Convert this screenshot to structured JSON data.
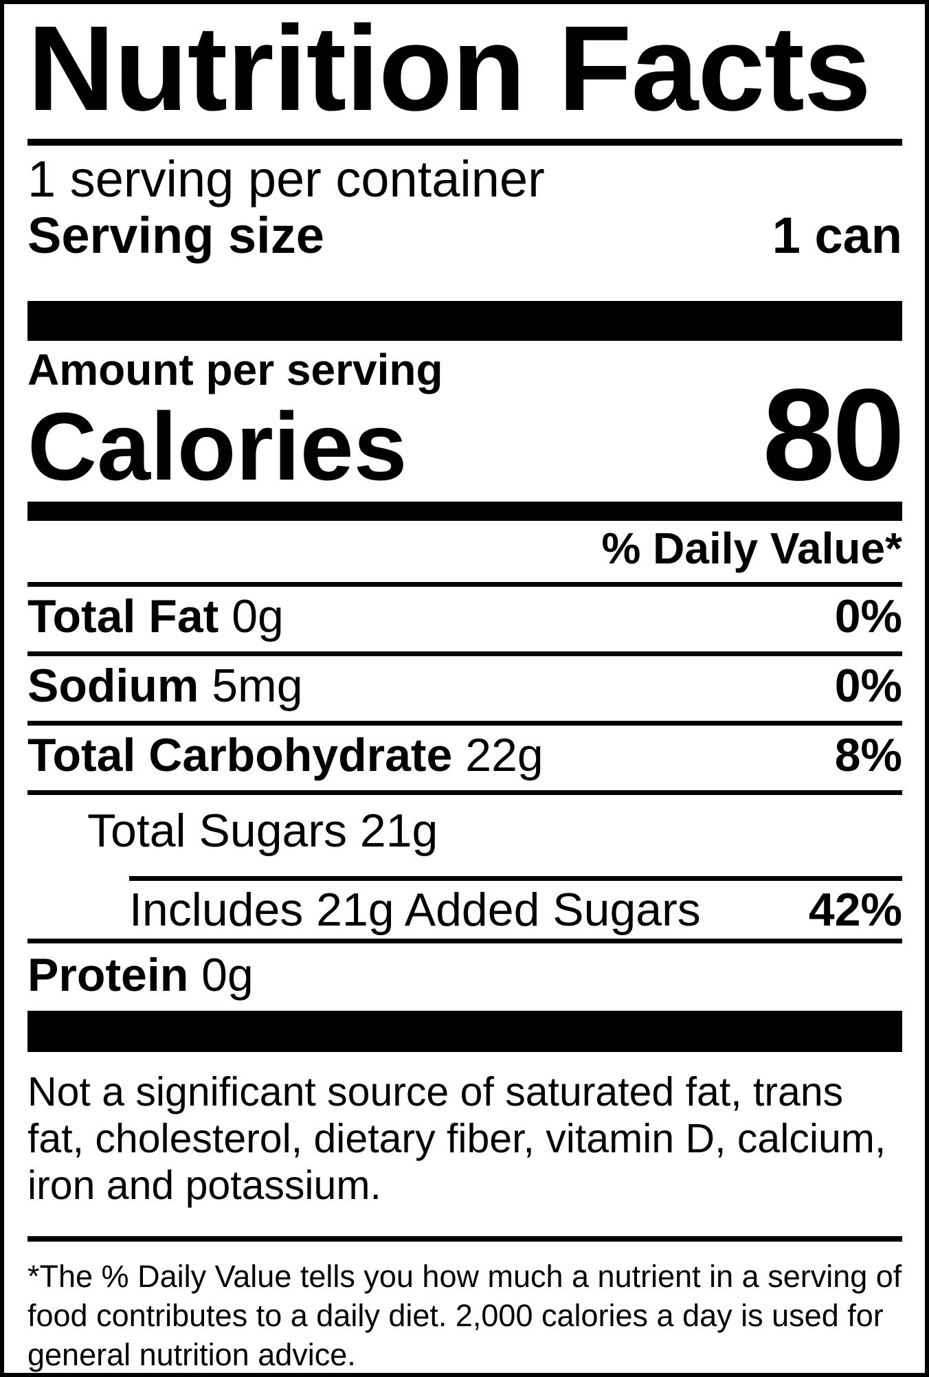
{
  "colors": {
    "ink": "#000000",
    "background": "#ffffff"
  },
  "nutrition": {
    "title": "Nutrition Facts",
    "servings_per_container": "1 serving per container",
    "serving_size_label": "Serving size",
    "serving_size_value": "1 can",
    "amount_per_serving_label": "Amount per serving",
    "calories_label": "Calories",
    "calories_value": "80",
    "daily_value_header": "% Daily Value*",
    "rows": [
      {
        "name": "Total Fat",
        "amount": "0g",
        "dv": "0%"
      },
      {
        "name": "Sodium",
        "amount": "5mg",
        "dv": "0%"
      },
      {
        "name": "Total Carbohydrate",
        "amount": "22g",
        "dv": "8%"
      },
      {
        "name": "Total Sugars",
        "amount": "21g",
        "dv": ""
      },
      {
        "name": "Includes 21g Added Sugars",
        "amount": "",
        "dv": "42%"
      },
      {
        "name": "Protein",
        "amount": "0g",
        "dv": ""
      }
    ],
    "disclaimer": "Not a significant source of saturated fat, trans fat, cholesterol, dietary fiber, vitamin D, calcium, iron and potassium.",
    "footnote": "*The % Daily Value tells you how much a nutrient in a serving of food contributes to a daily diet. 2,000 calories a day is used for general nutrition advice."
  }
}
